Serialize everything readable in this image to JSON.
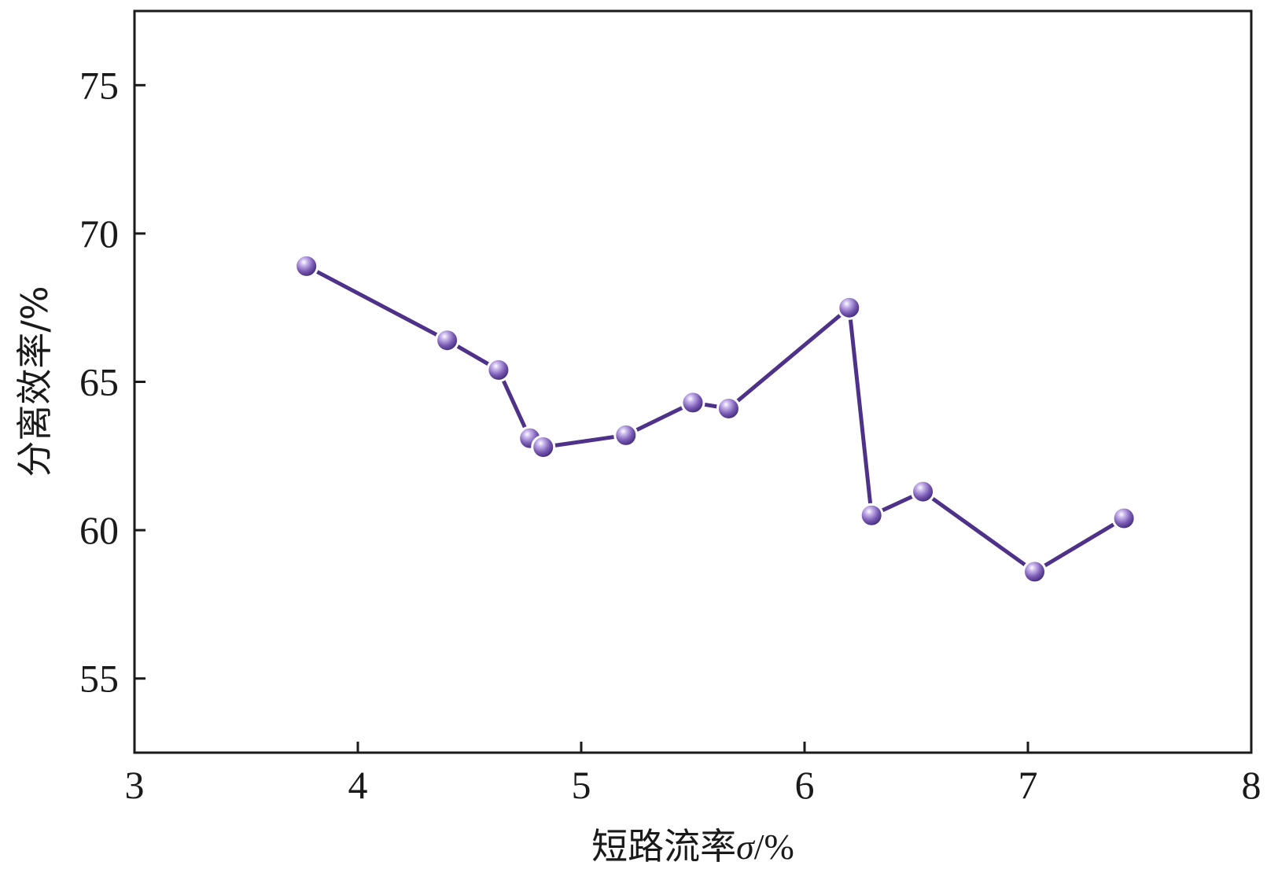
{
  "chart_data": {
    "type": "line",
    "xlabel": {
      "prefix": "短路流率",
      "symbol": "σ",
      "unit": "/%"
    },
    "ylabel": "分离效率/%",
    "xlim": [
      3,
      8
    ],
    "ylim": [
      52.5,
      77.5
    ],
    "xticks": [
      3,
      4,
      5,
      6,
      7,
      8
    ],
    "yticks": [
      55,
      60,
      65,
      70,
      75
    ],
    "grid": false,
    "series": [
      {
        "color": "#4e3289",
        "marker_color": "#7a5bb5",
        "points": [
          {
            "x": 3.77,
            "y": 68.9
          },
          {
            "x": 4.4,
            "y": 66.4
          },
          {
            "x": 4.63,
            "y": 65.4
          },
          {
            "x": 4.77,
            "y": 63.1
          },
          {
            "x": 4.83,
            "y": 62.8
          },
          {
            "x": 5.2,
            "y": 63.2
          },
          {
            "x": 5.5,
            "y": 64.3
          },
          {
            "x": 5.66,
            "y": 64.1
          },
          {
            "x": 6.2,
            "y": 67.5
          },
          {
            "x": 6.3,
            "y": 60.5
          },
          {
            "x": 6.53,
            "y": 61.3
          },
          {
            "x": 7.03,
            "y": 58.6
          },
          {
            "x": 7.43,
            "y": 60.4
          }
        ]
      }
    ]
  }
}
